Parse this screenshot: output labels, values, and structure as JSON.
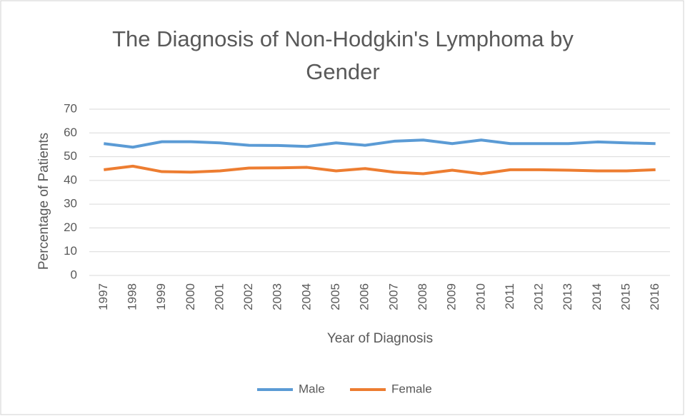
{
  "chart_data": {
    "type": "line",
    "title": "The Diagnosis of Non-Hodgkin's Lymphoma by Gender",
    "x_label": "Year of Diagnosis",
    "y_label": "Percentage of Patients",
    "categories": [
      "1997",
      "1998",
      "1999",
      "2000",
      "2001",
      "2002",
      "2003",
      "2004",
      "2005",
      "2006",
      "2007",
      "2008",
      "2009",
      "2010",
      "2011",
      "2012",
      "2013",
      "2014",
      "2015",
      "2016"
    ],
    "series": [
      {
        "name": "Male",
        "color": "#5b9bd5",
        "values": [
          55.5,
          54,
          56.3,
          56.3,
          55.8,
          54.8,
          54.7,
          54.3,
          55.8,
          54.8,
          56.5,
          57,
          55.5,
          57,
          55.5,
          55.5,
          55.5,
          56.2,
          55.8,
          55.5
        ]
      },
      {
        "name": "Female",
        "color": "#ed7d31",
        "values": [
          44.5,
          46,
          43.7,
          43.5,
          44,
          45.2,
          45.3,
          45.5,
          44,
          45,
          43.5,
          42.8,
          44.3,
          42.8,
          44.5,
          44.5,
          44.3,
          44,
          44,
          44.5
        ]
      }
    ],
    "ylim": [
      0,
      70
    ],
    "yticks": [
      0,
      10,
      20,
      30,
      40,
      50,
      60,
      70
    ],
    "grid": true,
    "legend": "bottom"
  }
}
